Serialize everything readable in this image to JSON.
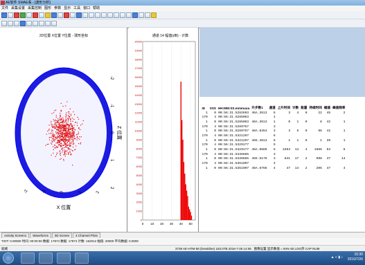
{
  "window": {
    "title": "AE软件 SWAE系 - [波形分析]"
  },
  "menu": [
    "文件",
    "采集设置",
    "采集控制",
    "图形",
    "参数",
    "显示",
    "工具",
    "窗口",
    "帮助"
  ],
  "left_panel": {
    "title": "2D位置 X位置 Y位置 - 球形坐标"
  },
  "mid_panel": {
    "title": "通道 14 幅值(dB) - 计数"
  },
  "tabs": [
    "Activity Screen1",
    "Waveforms",
    "3D Screen",
    "4 Channel Plots"
  ],
  "info_line": "TIOT: 0.00000 时间: 00:00:00  数据: 17974  数据: 17974  计数: 162012  幅值: 20000  平均数据: 0.0000",
  "status": {
    "left": "就绪",
    "right": "3739 AE-HTM-58 (breakline) 183.0TB  2016-7-26 14:06",
    "extra": "图像设置  显示数值 = 94%  60   LOG开  CAP  NUM"
  },
  "clock": {
    "time": "15:30",
    "date": "2016/7/26"
  },
  "table": {
    "headers": [
      "ID",
      "SSS",
      "HH:MM:SS.mmmuuu",
      "升步数1",
      "通道",
      "上升时间",
      "计数",
      "能量",
      "持续时间",
      "幅值",
      "峰值频率"
    ],
    "rows": [
      [
        "1",
        "0",
        "00:56:31.5282693",
        "46A.3513",
        "6",
        "3",
        "4",
        "0",
        "22",
        "45",
        "2"
      ],
      [
        "170",
        "4",
        "00:56:31.5285083",
        "",
        "1",
        "",
        "",
        "",
        "",
        "",
        ""
      ],
      [
        "1",
        "0",
        "00:56:31.5285083",
        "46A.3513",
        "1",
        "0",
        "1",
        "0",
        "8",
        "42",
        "1"
      ],
      [
        "170",
        "4",
        "00:56:31.5289757",
        "",
        "3",
        "",
        "",
        "",
        "",
        "",
        ""
      ],
      [
        "1",
        "0",
        "00:56:31.5289757",
        "46A.8454",
        "3",
        "3",
        "5",
        "0",
        "98",
        "42",
        "1"
      ],
      [
        "170",
        "4",
        "00:56:31.5321297",
        "",
        "6",
        "",
        "",
        "",
        "",
        "",
        ""
      ],
      [
        "1",
        "0",
        "00:56:31.5321297",
        "465.4813",
        "6",
        "1",
        "1",
        "0",
        "1",
        "39",
        "1"
      ],
      [
        "170",
        "4",
        "00:56:31.5329177",
        "",
        "5",
        "",
        "",
        "",
        "",
        "",
        ""
      ],
      [
        "1",
        "0",
        "00:56:31.5329177",
        "46A.9689",
        "5",
        "1593",
        "14",
        "4",
        "1666",
        "53",
        "8"
      ],
      [
        "170",
        "4",
        "00:56:31.5336685",
        "",
        "3",
        "",
        "",
        "",
        "",
        "",
        ""
      ],
      [
        "1",
        "0",
        "00:56:31.5336685",
        "465.6176",
        "3",
        "841",
        "17",
        "2",
        "998",
        "47",
        "14"
      ],
      [
        "170",
        "4",
        "00:56:31.5351907",
        "",
        "4",
        "",
        "",
        "",
        "",
        "",
        ""
      ],
      [
        "1",
        "0",
        "00:56:31.5351907",
        "46A.6766",
        "4",
        "47",
        "14",
        "2",
        "206",
        "47",
        "4"
      ]
    ]
  },
  "chart_data": [
    {
      "type": "scatter",
      "title": "2D位置 X位置 Y位置 - 球形坐标",
      "xlabel": "X 位置",
      "ylabel": "Z 位置",
      "y_ticks": [
        "-2",
        "-1",
        "0",
        "1",
        "2"
      ],
      "x_ticks": [
        "-2",
        "-1",
        "0",
        "1",
        "2"
      ],
      "note": "sphere cloud of red event points within a blue ring"
    },
    {
      "type": "bar",
      "title": "通道 14 幅值(dB) - 计数",
      "xlabel": "",
      "ylabel": "",
      "ylim": [
        0,
        20000
      ],
      "y_ticks": [
        0,
        1000,
        2000,
        3000,
        4000,
        5000,
        6000,
        7000,
        8000,
        9000,
        10000,
        11000,
        12000,
        13000,
        14000,
        15000,
        16000,
        17000,
        18000,
        19000,
        20000
      ],
      "x_ticks": [
        0,
        10,
        20,
        30,
        40,
        50
      ],
      "xlim": [
        0,
        55
      ],
      "categories": [
        40,
        41,
        42,
        43,
        44,
        45,
        46,
        47,
        48,
        49,
        50,
        51
      ],
      "values": [
        15500,
        11200,
        9000,
        6500,
        5200,
        4000,
        3300,
        2700,
        1500,
        1200,
        900,
        500
      ]
    }
  ]
}
